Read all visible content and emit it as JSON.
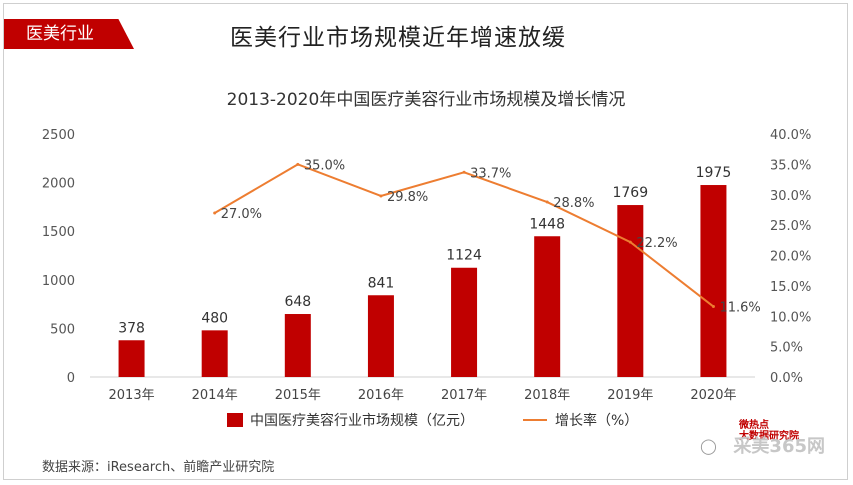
{
  "tag_label": "医美行业",
  "headline": "医美行业市场规模近年增速放缓",
  "source": "数据来源：iResearch、前瞻产业研究院",
  "watermark": {
    "site": "采美365网",
    "logo_text": "微热点",
    "logo_sub": "大数据研究院"
  },
  "chart_data": {
    "type": "bar",
    "title": "2013-2020年中国医疗美容行业市场规模及增长情况",
    "categories": [
      "2013年",
      "2014年",
      "2015年",
      "2016年",
      "2017年",
      "2018年",
      "2019年",
      "2020年"
    ],
    "series": [
      {
        "name": "中国医疗美容行业市场规模（亿元）",
        "type": "bar",
        "axis": "left",
        "color": "#c00000",
        "values": [
          378,
          480,
          648,
          841,
          1124,
          1448,
          1769,
          1975
        ]
      },
      {
        "name": "增长率（%）",
        "type": "line",
        "axis": "right",
        "color": "#ed7d31",
        "values": [
          null,
          27.0,
          35.0,
          29.8,
          33.7,
          28.8,
          22.2,
          11.6
        ]
      }
    ],
    "y_left": {
      "min": 0,
      "max": 2500,
      "ticks": [
        "0",
        "500",
        "1000",
        "1500",
        "2000",
        "2500"
      ]
    },
    "y_right": {
      "min": 0,
      "max": 40,
      "ticks": [
        "0.0%",
        "5.0%",
        "10.0%",
        "15.0%",
        "20.0%",
        "25.0%",
        "30.0%",
        "35.0%",
        "40.0%"
      ]
    },
    "bar_labels": [
      "378",
      "480",
      "648",
      "841",
      "1124",
      "1448",
      "1769",
      "1975"
    ],
    "line_labels": [
      "",
      "27.0%",
      "35.0%",
      "29.8%",
      "33.7%",
      "28.8%",
      "22.2%",
      "11.6%"
    ],
    "grid": false,
    "legend_position": "bottom"
  }
}
